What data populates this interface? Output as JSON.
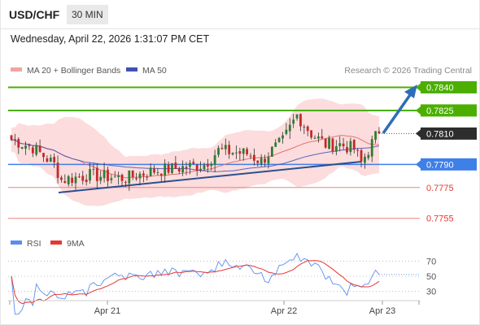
{
  "header": {
    "symbol": "USD/CHF",
    "timeframe": "30 MIN",
    "datetime": "Wednesday, April 22, 2026 1:31:07 PM CET"
  },
  "legend": {
    "ma20_label": "MA 20 + Bollinger Bands",
    "ma50_label": "MA 50",
    "credit": "Research © 2026 Trading Central"
  },
  "rsi_legend": {
    "rsi_label": "RSI",
    "ma_label": "9MA"
  },
  "colors": {
    "up_candle": "#2e7d32",
    "down_candle": "#c62828",
    "bollinger_fill": "#fbd3d3",
    "ma20": "#e57373",
    "ma50": "#3f51b5",
    "resistance": "#4caf00",
    "pivot": "#3f7fe8",
    "support": "#f08080",
    "last_price": "#2d2d2d",
    "trendline": "#2b4f8f",
    "arrow": "#2f6db5",
    "rsi_line": "#5b8def",
    "rsi_ma": "#e53935"
  },
  "chart_data": [
    {
      "type": "candlestick",
      "title": "USD/CHF",
      "y_range": [
        0.7748,
        0.7845
      ],
      "x_ticks": [
        "Apr 21",
        "Apr 22",
        "Apr 23"
      ],
      "levels": [
        {
          "value": 0.784,
          "label": "0.7840",
          "kind": "resistance"
        },
        {
          "value": 0.7825,
          "label": "0.7825",
          "kind": "resistance"
        },
        {
          "value": 0.781,
          "label": "0.7810",
          "kind": "last"
        },
        {
          "value": 0.779,
          "label": "0.7790",
          "kind": "pivot"
        },
        {
          "value": 0.7775,
          "label": "0.7775",
          "kind": "support"
        },
        {
          "value": 0.7755,
          "label": "0.7755",
          "kind": "support"
        }
      ],
      "series": [
        {
          "name": "MA 20 + Bollinger Bands"
        },
        {
          "name": "MA 50"
        }
      ]
    },
    {
      "type": "line",
      "title": "RSI",
      "y_range": [
        20,
        80
      ],
      "y_ticks": [
        70,
        50,
        30
      ],
      "series": [
        {
          "name": "RSI"
        },
        {
          "name": "9MA"
        }
      ]
    }
  ]
}
